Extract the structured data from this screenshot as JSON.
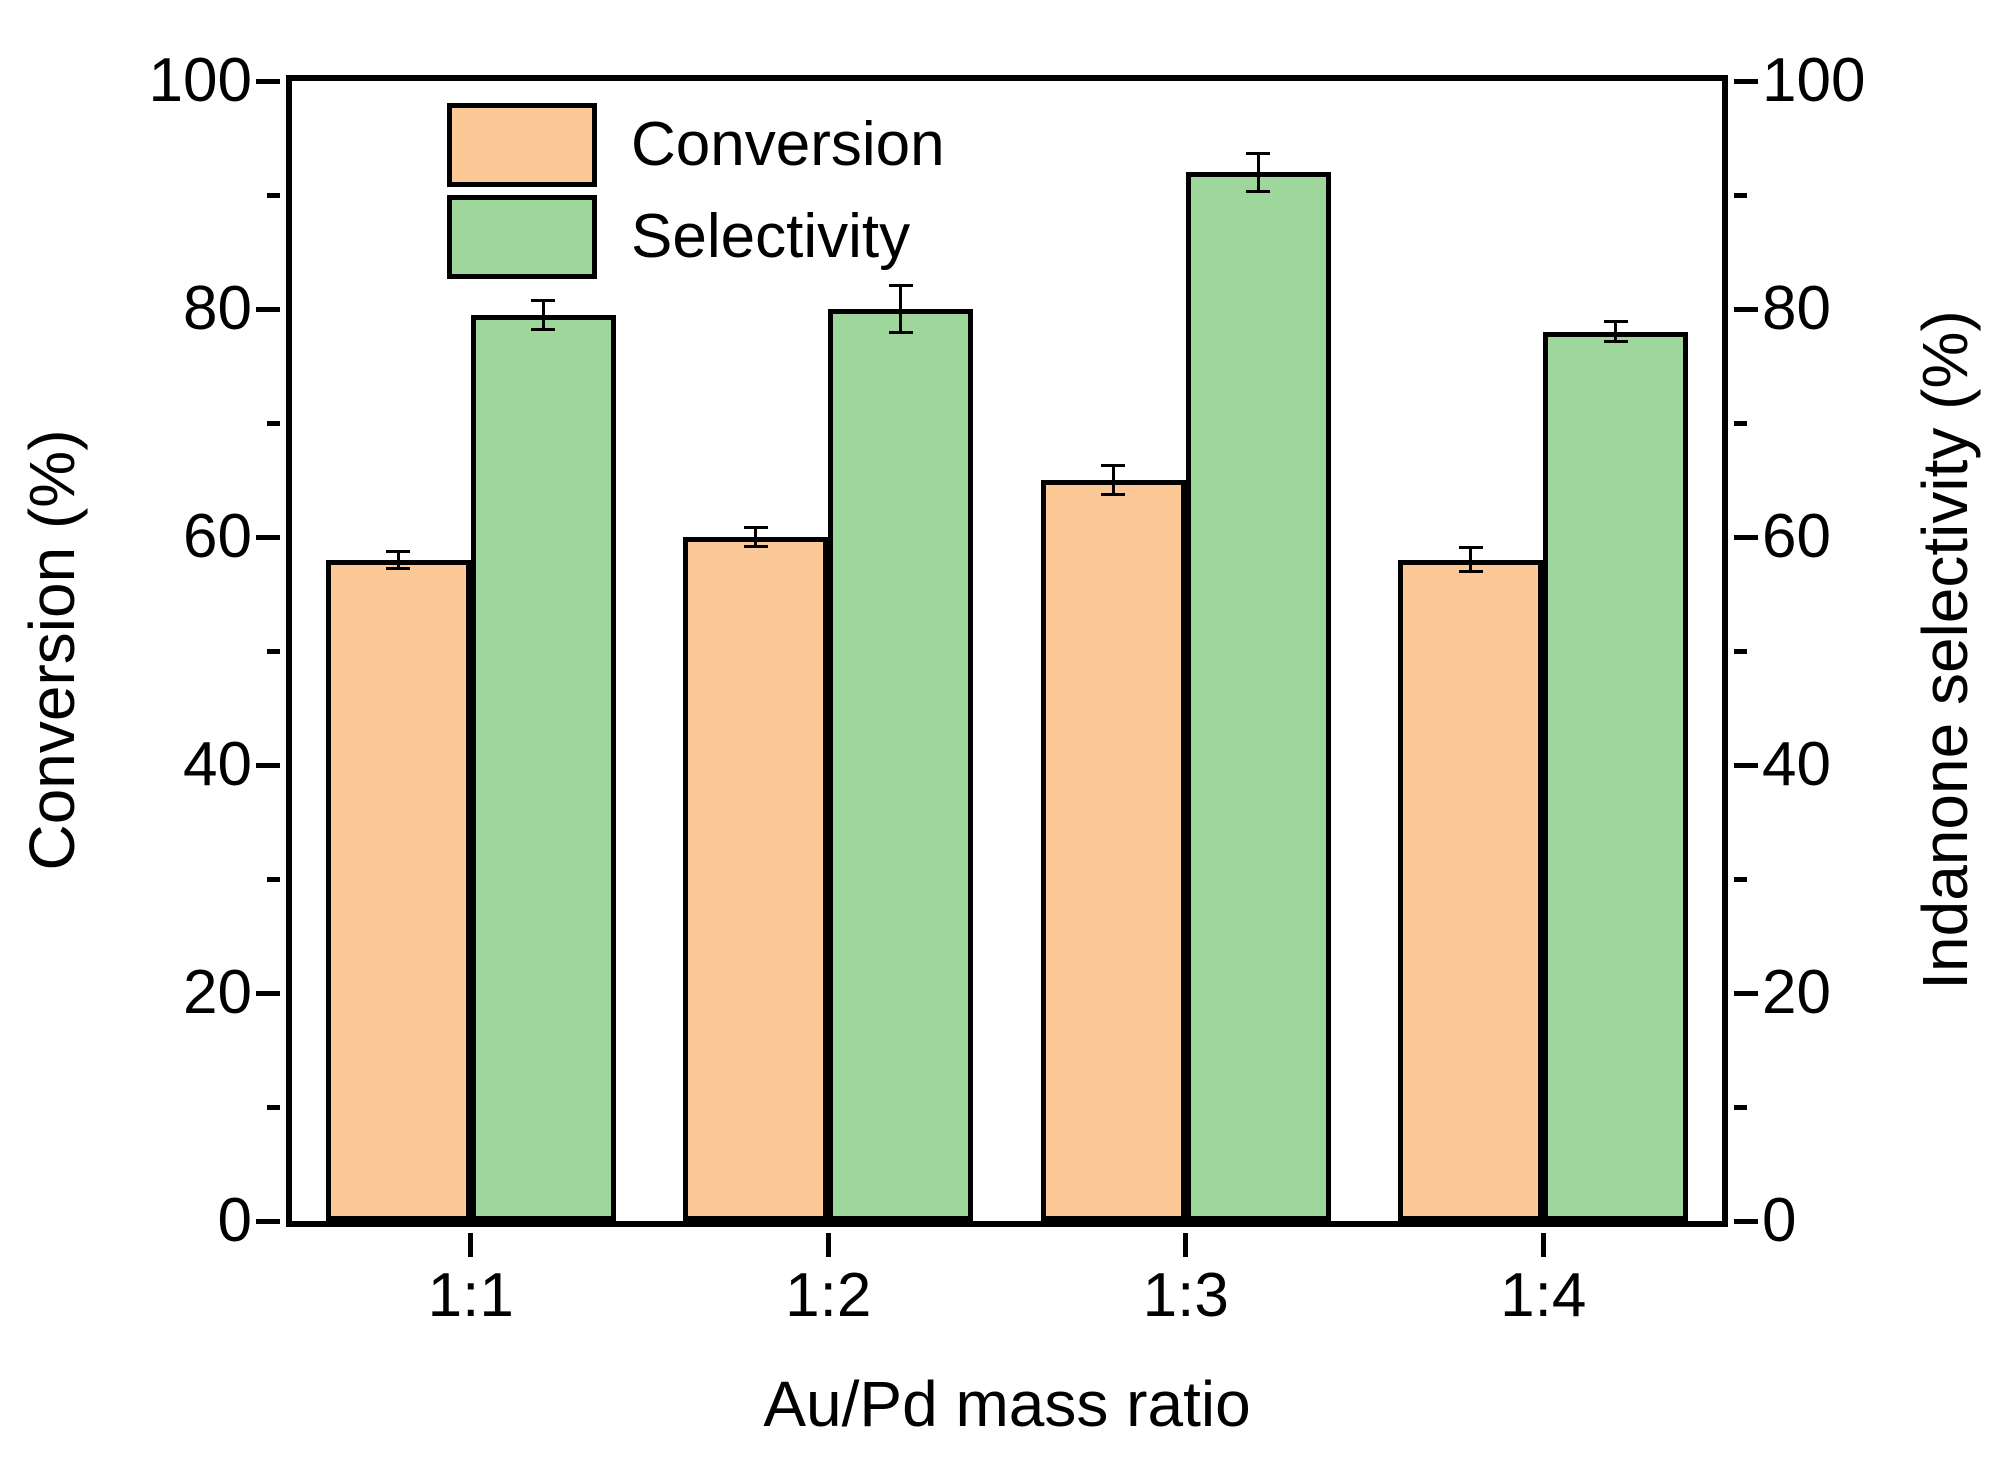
{
  "chart_data": {
    "type": "bar",
    "title": "",
    "categories": [
      "1:1",
      "1:2",
      "1:3",
      "1:4"
    ],
    "series": [
      {
        "name": "Conversion",
        "values": [
          58,
          60,
          65,
          58
        ],
        "errors": [
          0.9,
          1.0,
          1.4,
          1.2
        ],
        "color": "#FBC896"
      },
      {
        "name": "Selectivity",
        "values": [
          79.5,
          80,
          92,
          78
        ],
        "errors": [
          1.4,
          2.2,
          1.8,
          1.0
        ],
        "color": "#9ED69C"
      }
    ],
    "xlabel": "Au/Pd mass ratio",
    "ylabel_left": "Conversion (%)",
    "ylabel_right": "Indanone selectivity (%)",
    "ylim": [
      0,
      100
    ],
    "ytick_major_step": 20,
    "ytick_minor_step": 10,
    "ytick_labels": [
      "0",
      "20",
      "40",
      "60",
      "80",
      "100"
    ],
    "legend_position": "top-left",
    "legend_frame": false,
    "grid": false,
    "axis_color": "#000000",
    "background_color": "#FFFFFF",
    "bar_edge_color": "#000000"
  }
}
